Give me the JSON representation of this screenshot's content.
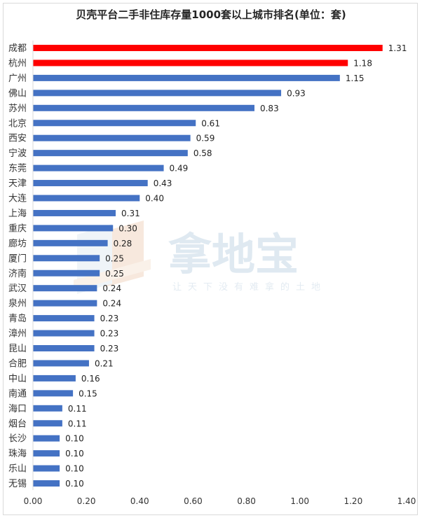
{
  "chart_data": {
    "type": "bar",
    "orientation": "horizontal",
    "title": "贝壳平台二手非住库存量1000套以上城市排名(单位：套)",
    "categories": [
      "成都",
      "杭州",
      "广州",
      "佛山",
      "苏州",
      "北京",
      "西安",
      "宁波",
      "东莞",
      "天津",
      "大连",
      "上海",
      "重庆",
      "廊坊",
      "厦门",
      "济南",
      "武汉",
      "泉州",
      "青岛",
      "漳州",
      "昆山",
      "合肥",
      "中山",
      "南通",
      "海口",
      "烟台",
      "长沙",
      "珠海",
      "乐山",
      "无锡"
    ],
    "values": [
      1.31,
      1.18,
      1.15,
      0.93,
      0.83,
      0.61,
      0.59,
      0.58,
      0.49,
      0.43,
      0.4,
      0.31,
      0.3,
      0.28,
      0.25,
      0.25,
      0.24,
      0.24,
      0.23,
      0.23,
      0.23,
      0.21,
      0.16,
      0.15,
      0.11,
      0.11,
      0.1,
      0.1,
      0.1,
      0.1
    ],
    "value_labels": [
      "1.31",
      "1.18",
      "1.15",
      "0.93",
      "0.83",
      "0.61",
      "0.59",
      "0.58",
      "0.49",
      "0.43",
      "0.40",
      "0.31",
      "0.30",
      "0.28",
      "0.25",
      "0.25",
      "0.24",
      "0.24",
      "0.23",
      "0.23",
      "0.23",
      "0.21",
      "0.16",
      "0.15",
      "0.11",
      "0.11",
      "0.10",
      "0.10",
      "0.10",
      "0.10"
    ],
    "bar_colors": [
      "#ff0000",
      "#ff0000",
      "#4472c4",
      "#4472c4",
      "#4472c4",
      "#4472c4",
      "#4472c4",
      "#4472c4",
      "#4472c4",
      "#4472c4",
      "#4472c4",
      "#4472c4",
      "#4472c4",
      "#4472c4",
      "#4472c4",
      "#4472c4",
      "#4472c4",
      "#4472c4",
      "#4472c4",
      "#4472c4",
      "#4472c4",
      "#4472c4",
      "#4472c4",
      "#4472c4",
      "#4472c4",
      "#4472c4",
      "#4472c4",
      "#4472c4",
      "#4472c4",
      "#4472c4"
    ],
    "xlim": [
      0,
      1.4
    ],
    "x_ticks": [
      "0.00",
      "0.20",
      "0.40",
      "0.60",
      "0.80",
      "1.00",
      "1.20",
      "1.40"
    ],
    "grid": false,
    "legend": "none"
  },
  "watermark": {
    "text": "拿地宝",
    "slogan": "让天下没有难拿的土地"
  },
  "colors": {
    "highlight": "#ff0000",
    "bar": "#4472c4",
    "axis": "#d9d9d9"
  }
}
